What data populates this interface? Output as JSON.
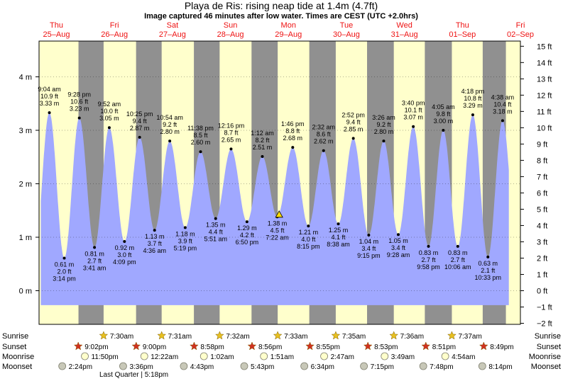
{
  "header": {
    "title": "Playa de Ris: rising  neap tide at 1.4m (4.7ft)",
    "subtitle": "Image captured 46 minutes after low water. Times are CEST (UTC +2.0hrs)"
  },
  "colors": {
    "day": "#ffffcc",
    "night": "#909090",
    "tide": "#a0a8ff",
    "date_red": "#ee1111",
    "current_marker": "#ffdd00"
  },
  "days": [
    {
      "weekday": "Thu",
      "date": "25–Aug"
    },
    {
      "weekday": "Fri",
      "date": "26–Aug"
    },
    {
      "weekday": "Sat",
      "date": "27–Aug"
    },
    {
      "weekday": "Sun",
      "date": "28–Aug"
    },
    {
      "weekday": "Mon",
      "date": "29–Aug"
    },
    {
      "weekday": "Tue",
      "date": "30–Aug"
    },
    {
      "weekday": "Wed",
      "date": "31–Aug"
    },
    {
      "weekday": "Thu",
      "date": "01–Sep"
    },
    {
      "weekday": "Fri",
      "date": "02–Sep"
    }
  ],
  "chart_data": {
    "type": "area",
    "ylabel_left_unit": "m",
    "ylabel_right_unit": "ft",
    "ylim_m": [
      -0.44,
      4.72
    ],
    "y_ticks_m": [
      "0 m",
      "1 m",
      "2 m",
      "3 m",
      "4 m"
    ],
    "y_ticks_ft": [
      "−2 ft",
      "−1 ft",
      "0 ft",
      "1 ft",
      "2 ft",
      "3 ft",
      "4 ft",
      "5 ft",
      "6 ft",
      "7 ft",
      "8 ft",
      "9 ft",
      "10 ft",
      "11 ft",
      "12 ft",
      "13 ft",
      "14 ft",
      "15 ft"
    ],
    "x_unit": "days since 25-Aug 00:00",
    "current_level": {
      "t": 4.34,
      "m": 1.4
    },
    "extremes": [
      {
        "t": 0.378,
        "type": "high",
        "time": "9:04 am",
        "ft": "10.9 ft",
        "m": 3.33
      },
      {
        "t": 0.635,
        "type": "low",
        "time": "3:14 pm",
        "ft": "2.0 ft",
        "m": 0.61
      },
      {
        "t": 0.894,
        "type": "high",
        "time": "9:28 pm",
        "ft": "10.6 ft",
        "m": 3.23
      },
      {
        "t": 1.156,
        "type": "low",
        "time": "3:41 am",
        "ft": "2.7 ft",
        "m": 0.81
      },
      {
        "t": 1.411,
        "type": "high",
        "time": "9:52 am",
        "ft": "10.0 ft",
        "m": 3.05
      },
      {
        "t": 1.673,
        "type": "low",
        "time": "4:09 pm",
        "ft": "3.0 ft",
        "m": 0.92
      },
      {
        "t": 1.934,
        "type": "high",
        "time": "10:25 pm",
        "ft": "9.4 ft",
        "m": 2.87
      },
      {
        "t": 2.192,
        "type": "low",
        "time": "4:36 am",
        "ft": "3.7 ft",
        "m": 1.13
      },
      {
        "t": 2.454,
        "type": "high",
        "time": "10:54 am",
        "ft": "9.2 ft",
        "m": 2.8
      },
      {
        "t": 2.72,
        "type": "low",
        "time": "5:19 pm",
        "ft": "3.9 ft",
        "m": 1.18
      },
      {
        "t": 2.985,
        "type": "high",
        "time": "11:38 pm",
        "ft": "8.5 ft",
        "m": 2.6
      },
      {
        "t": 3.245,
        "type": "low",
        "time": "5:51 am",
        "ft": "4.4 ft",
        "m": 1.35
      },
      {
        "t": 3.511,
        "type": "high",
        "time": "12:16 pm",
        "ft": "8.7 ft",
        "m": 2.65
      },
      {
        "t": 3.785,
        "type": "low",
        "time": "6:50 pm",
        "ft": "4.2 ft",
        "m": 1.29
      },
      {
        "t": 4.05,
        "type": "high",
        "time": "1:12 am",
        "ft": "8.2 ft",
        "m": 2.51
      },
      {
        "t": 4.307,
        "type": "low",
        "time": "7:22 am",
        "ft": "4.5 ft",
        "m": 1.38
      },
      {
        "t": 4.574,
        "type": "high",
        "time": "1:46 pm",
        "ft": "8.8 ft",
        "m": 2.68
      },
      {
        "t": 4.844,
        "type": "low",
        "time": "8:15 pm",
        "ft": "4.0 ft",
        "m": 1.21
      },
      {
        "t": 5.106,
        "type": "high",
        "time": "2:32 am",
        "ft": "8.6 ft",
        "m": 2.62
      },
      {
        "t": 5.36,
        "type": "low",
        "time": "8:38 am",
        "ft": "4.1 ft",
        "m": 1.25
      },
      {
        "t": 5.619,
        "type": "high",
        "time": "2:52 pm",
        "ft": "9.4 ft",
        "m": 2.85
      },
      {
        "t": 5.885,
        "type": "low",
        "time": "9:15 pm",
        "ft": "3.4 ft",
        "m": 1.04
      },
      {
        "t": 6.143,
        "type": "high",
        "time": "3:26 am",
        "ft": "9.2 ft",
        "m": 2.8
      },
      {
        "t": 6.394,
        "type": "low",
        "time": "9:28 am",
        "ft": "3.4 ft",
        "m": 1.05
      },
      {
        "t": 6.653,
        "type": "high",
        "time": "3:40 pm",
        "ft": "10.1 ft",
        "m": 3.07
      },
      {
        "t": 6.915,
        "type": "low",
        "time": "9:58 pm",
        "ft": "2.7 ft",
        "m": 0.83
      },
      {
        "t": 7.17,
        "type": "high",
        "time": "4:05 am",
        "ft": "9.8 ft",
        "m": 3.0
      },
      {
        "t": 7.42,
        "type": "low",
        "time": "10:06 am",
        "ft": "2.7 ft",
        "m": 0.83
      },
      {
        "t": 7.679,
        "type": "high",
        "time": "4:18 pm",
        "ft": "10.8 ft",
        "m": 3.29
      },
      {
        "t": 7.94,
        "type": "low",
        "time": "10:33 pm",
        "ft": "2.1 ft",
        "m": 0.63
      },
      {
        "t": 8.193,
        "type": "high",
        "time": "4:38 am",
        "ft": "10.4 ft",
        "m": 3.18
      }
    ],
    "night_bands": [
      [
        0.88,
        1.313
      ],
      [
        1.873,
        2.314
      ],
      [
        2.87,
        3.314
      ],
      [
        3.864,
        4.315
      ],
      [
        4.86,
        5.316
      ],
      [
        5.856,
        6.317
      ],
      [
        6.852,
        7.318
      ],
      [
        7.85,
        8.25
      ]
    ]
  },
  "astro": {
    "labels": {
      "sunrise": "Sunrise",
      "sunset": "Sunset",
      "moonrise": "Moonrise",
      "moonset": "Moonset"
    },
    "sunrise": [
      "7:30am",
      "7:31am",
      "7:32am",
      "7:33am",
      "7:35am",
      "7:36am",
      "7:37am"
    ],
    "sunset": [
      "9:02pm",
      "9:00pm",
      "8:58pm",
      "8:56pm",
      "8:55pm",
      "8:53pm",
      "8:51pm",
      "8:49pm"
    ],
    "moonrise": [
      "11:50pm",
      "12:22am",
      "1:02am",
      "1:51am",
      "2:47am",
      "3:49am",
      "4:54am"
    ],
    "moonset": [
      "2:24pm",
      "3:36pm",
      "4:43pm",
      "5:43pm",
      "6:34pm",
      "7:15pm",
      "7:48pm",
      "8:14pm"
    ],
    "moon_phase_note": "Last Quarter | 5:18pm"
  }
}
